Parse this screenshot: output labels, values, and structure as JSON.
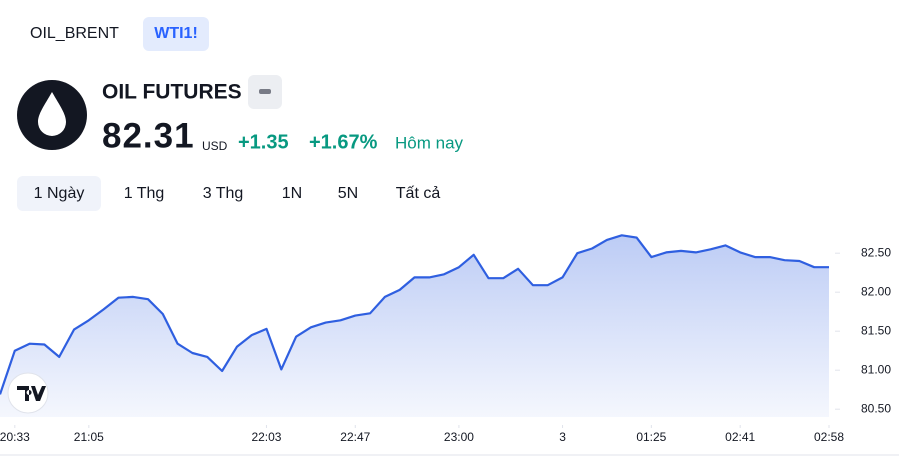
{
  "tabs": [
    "OIL_BRENT",
    "WTI1!"
  ],
  "header": {
    "name": "OIL FUTURES",
    "price": "82.31",
    "currency": "USD",
    "change": "+1.35",
    "change_pct": "+1.67%",
    "period": "Hôm nay"
  },
  "ranges": [
    "1 Ngày",
    "1 Thg",
    "3 Thg",
    "1N",
    "5N",
    "Tất cả"
  ],
  "chart_data": {
    "type": "area",
    "color": "#2f5fe0",
    "values": [
      80.69,
      81.25,
      81.34,
      81.33,
      81.17,
      81.52,
      81.64,
      81.78,
      81.93,
      81.94,
      81.91,
      81.72,
      81.34,
      81.22,
      81.17,
      80.99,
      81.3,
      81.45,
      81.53,
      81.01,
      81.43,
      81.55,
      81.61,
      81.64,
      81.7,
      81.73,
      81.94,
      82.03,
      82.19,
      82.19,
      82.23,
      82.32,
      82.48,
      82.18,
      82.18,
      82.3,
      82.09,
      82.09,
      82.19,
      82.5,
      82.56,
      82.67,
      82.73,
      82.7,
      82.45,
      82.51,
      82.53,
      82.51,
      82.55,
      82.6,
      82.51,
      82.45,
      82.45,
      82.41,
      82.4,
      82.32,
      82.32
    ],
    "xlim": [
      0,
      56
    ],
    "xticks": [
      {
        "value": 1,
        "label": "20:33"
      },
      {
        "value": 6,
        "label": "21:05"
      },
      {
        "value": 18,
        "label": "22:03"
      },
      {
        "value": 24,
        "label": "22:47"
      },
      {
        "value": 31,
        "label": "23:00"
      },
      {
        "value": 38,
        "label": "3"
      },
      {
        "value": 44,
        "label": "01:25"
      },
      {
        "value": 50,
        "label": "02:41"
      },
      {
        "value": 56,
        "label": "02:58"
      }
    ],
    "ylim": [
      80.4,
      82.9
    ],
    "yticks": [
      {
        "value": 80.5,
        "label": "80.50"
      },
      {
        "value": 81,
        "label": "81.00"
      },
      {
        "value": 81.5,
        "label": "81.50"
      },
      {
        "value": 82,
        "label": "82.00"
      },
      {
        "value": 82.5,
        "label": "82.50"
      }
    ]
  }
}
